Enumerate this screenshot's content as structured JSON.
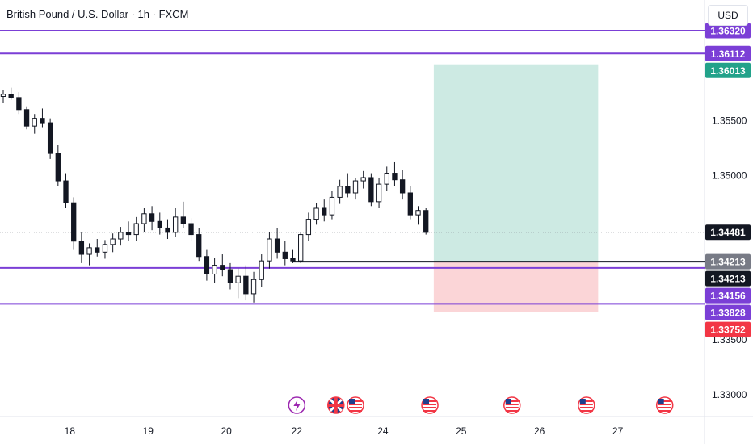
{
  "chart_title": "British Pound / U.S. Dollar · 1h · FXCM",
  "currency_label": "USD",
  "colors": {
    "up": "#131722",
    "down": "#131722",
    "level_line": "#7b3fd6",
    "target_zone": "#cdeae3",
    "stop_zone": "#fbd5d7",
    "target_badge": "#22a28a",
    "stop_badge": "#f23645",
    "level_badge": "#7b3fd6",
    "last_price_badge": "#131722",
    "entry_badge": "#787b86"
  },
  "chart_data": {
    "type": "candlestick",
    "symbol": "GBPUSD",
    "timeframe": "1h",
    "xlabel": "",
    "ylabel": "",
    "y_ticks": [
      "1.33000",
      "1.33500",
      "1.35000",
      "1.35500"
    ],
    "y_range": [
      1.328,
      1.366
    ],
    "x_ticks": [
      "18",
      "19",
      "20",
      "22",
      "24",
      "25",
      "26",
      "27"
    ],
    "x_range": [
      0,
      90
    ],
    "x_tick_positions": [
      8.5,
      18.5,
      28.5,
      37.5,
      48.5,
      58.5,
      68.5,
      78.5
    ],
    "grid": false,
    "candles": [
      [
        0,
        1.3572,
        1.3578,
        1.3566,
        1.3574
      ],
      [
        1,
        1.3574,
        1.358,
        1.3569,
        1.3571
      ],
      [
        2,
        1.3571,
        1.3576,
        1.3556,
        1.356
      ],
      [
        3,
        1.356,
        1.3563,
        1.3542,
        1.3545
      ],
      [
        4,
        1.3545,
        1.3556,
        1.3538,
        1.3552
      ],
      [
        5,
        1.3552,
        1.3561,
        1.3544,
        1.3548
      ],
      [
        6,
        1.3548,
        1.3552,
        1.3515,
        1.352
      ],
      [
        7,
        1.352,
        1.3528,
        1.349,
        1.3495
      ],
      [
        8,
        1.3495,
        1.3502,
        1.347,
        1.3475
      ],
      [
        9,
        1.3475,
        1.348,
        1.3432,
        1.344
      ],
      [
        10,
        1.344,
        1.3448,
        1.342,
        1.3428
      ],
      [
        11,
        1.3428,
        1.3438,
        1.3418,
        1.3434
      ],
      [
        12,
        1.3434,
        1.3442,
        1.3426,
        1.343
      ],
      [
        13,
        1.343,
        1.3441,
        1.3424,
        1.3437
      ],
      [
        14,
        1.3437,
        1.3447,
        1.343,
        1.3442
      ],
      [
        15,
        1.3442,
        1.3453,
        1.3436,
        1.3448
      ],
      [
        16,
        1.3448,
        1.3458,
        1.344,
        1.3446
      ],
      [
        17,
        1.3446,
        1.3462,
        1.344,
        1.3456
      ],
      [
        18,
        1.3456,
        1.347,
        1.3448,
        1.3465
      ],
      [
        19,
        1.3465,
        1.3472,
        1.345,
        1.3458
      ],
      [
        20,
        1.3458,
        1.3466,
        1.3446,
        1.3452
      ],
      [
        21,
        1.3452,
        1.346,
        1.3442,
        1.3448
      ],
      [
        22,
        1.3448,
        1.347,
        1.3444,
        1.3462
      ],
      [
        23,
        1.3462,
        1.3476,
        1.3452,
        1.3456
      ],
      [
        24,
        1.3456,
        1.3461,
        1.344,
        1.3446
      ],
      [
        25,
        1.3446,
        1.3452,
        1.3422,
        1.3426
      ],
      [
        26,
        1.3426,
        1.3432,
        1.3404,
        1.341
      ],
      [
        27,
        1.341,
        1.3425,
        1.3402,
        1.3418
      ],
      [
        28,
        1.3418,
        1.3428,
        1.3408,
        1.3414
      ],
      [
        29,
        1.3414,
        1.342,
        1.3396,
        1.3402
      ],
      [
        30,
        1.3402,
        1.3415,
        1.3388,
        1.3408
      ],
      [
        31,
        1.3408,
        1.3418,
        1.3386,
        1.3392
      ],
      [
        32,
        1.3392,
        1.3412,
        1.3384,
        1.3405
      ],
      [
        33,
        1.3405,
        1.3428,
        1.3398,
        1.3422
      ],
      [
        34,
        1.3422,
        1.3448,
        1.3415,
        1.3442
      ],
      [
        35,
        1.3442,
        1.3452,
        1.3424,
        1.343
      ],
      [
        36,
        1.343,
        1.344,
        1.3418,
        1.3424
      ],
      [
        37,
        1.3424,
        1.3432,
        1.342,
        1.3422
      ],
      [
        38,
        1.3422,
        1.3448,
        1.342,
        1.3446
      ],
      [
        39,
        1.3446,
        1.3466,
        1.344,
        1.346
      ],
      [
        40,
        1.346,
        1.3475,
        1.3455,
        1.347
      ],
      [
        41,
        1.347,
        1.3478,
        1.3458,
        1.3464
      ],
      [
        42,
        1.3464,
        1.3486,
        1.346,
        1.348
      ],
      [
        43,
        1.348,
        1.3496,
        1.3474,
        1.349
      ],
      [
        44,
        1.349,
        1.3502,
        1.348,
        1.3484
      ],
      [
        45,
        1.3484,
        1.3498,
        1.3478,
        1.3495
      ],
      [
        46,
        1.3495,
        1.3504,
        1.3488,
        1.3498
      ],
      [
        47,
        1.3498,
        1.3502,
        1.3472,
        1.3476
      ],
      [
        48,
        1.3476,
        1.3498,
        1.347,
        1.3492
      ],
      [
        49,
        1.3492,
        1.3508,
        1.3486,
        1.3502
      ],
      [
        50,
        1.3502,
        1.3512,
        1.349,
        1.3496
      ],
      [
        51,
        1.3496,
        1.3505,
        1.3478,
        1.3484
      ],
      [
        52,
        1.3484,
        1.349,
        1.346,
        1.3464
      ],
      [
        53,
        1.3464,
        1.3472,
        1.3455,
        1.3468
      ],
      [
        54,
        1.3468,
        1.347,
        1.3446,
        1.3448
      ]
    ],
    "horizontal_levels": [
      1.3632,
      1.36112,
      1.34156,
      1.33828
    ],
    "last_price": 1.34481,
    "entry_price": 1.34213,
    "position": {
      "side": "long",
      "entry": 1.34213,
      "target": 1.36013,
      "stop": 1.33752,
      "start_x": 55,
      "end_x": 76
    },
    "price_labels": [
      {
        "text": "1.36320",
        "value": 1.3632,
        "kind": "level"
      },
      {
        "text": "1.36112",
        "value": 1.36112,
        "kind": "level"
      },
      {
        "text": "1.36013",
        "value": 1.36013,
        "kind": "target"
      },
      {
        "text": "1.34481",
        "value": 1.34481,
        "kind": "last"
      },
      {
        "text": "1.34213",
        "value": 1.34213,
        "kind": "entry-grey"
      },
      {
        "text": "1.34213",
        "value": 1.34213,
        "kind": "entry-dark"
      },
      {
        "text": "1.34156",
        "value": 1.34156,
        "kind": "level"
      },
      {
        "text": "1.33828",
        "value": 1.33828,
        "kind": "level"
      },
      {
        "text": "1.33752",
        "value": 1.33752,
        "kind": "stop"
      }
    ],
    "events": [
      {
        "x": 37.5,
        "icon": "lightning-icon"
      },
      {
        "x": 42.5,
        "icon": "uk-flag-icon"
      },
      {
        "x": 45.0,
        "icon": "us-flag-icon"
      },
      {
        "x": 54.5,
        "icon": "us-flag-icon"
      },
      {
        "x": 65.0,
        "icon": "us-flag-icon"
      },
      {
        "x": 74.5,
        "icon": "us-flag-icon"
      },
      {
        "x": 84.5,
        "icon": "us-flag-icon"
      }
    ]
  }
}
